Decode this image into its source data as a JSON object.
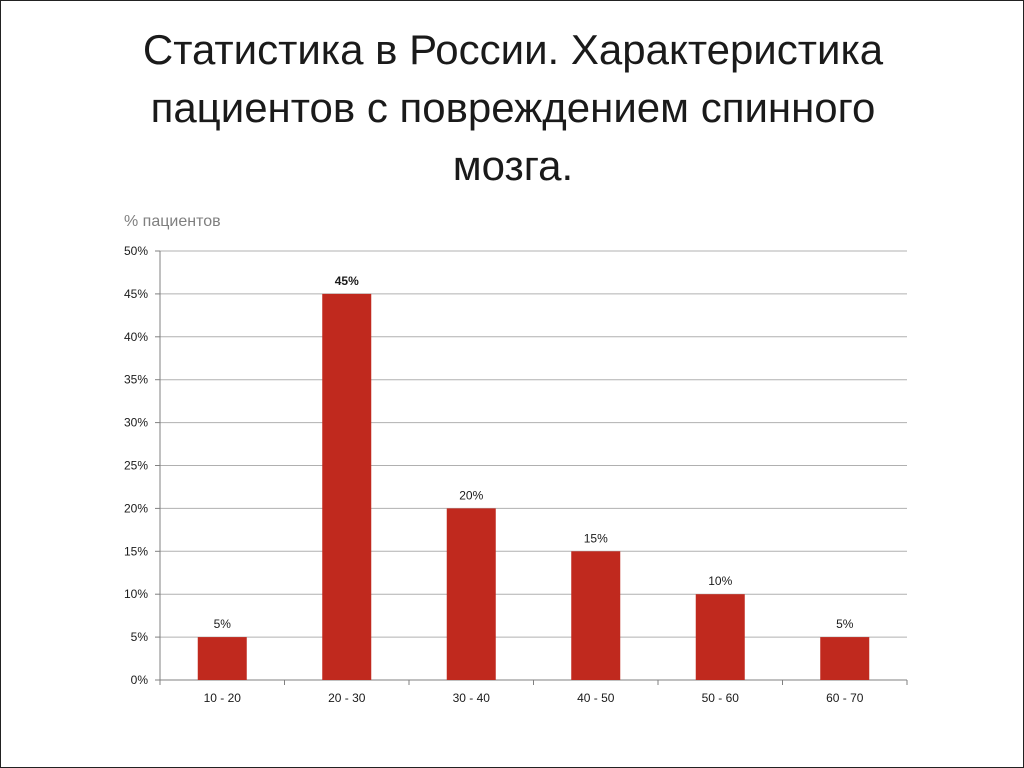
{
  "title_lines": [
    "Статистика в России. Характеристика",
    "пациентов с повреждением спинного",
    "мозга."
  ],
  "colors": {
    "bar": "#C0291E",
    "grid": "#b0b0b0",
    "axis": "#808080",
    "text": "#1a1a1a"
  },
  "chart_data": {
    "type": "bar",
    "ylabel": "% пациентов",
    "xlabel": "",
    "categories": [
      "10 - 20",
      "20 - 30",
      "30 - 40",
      "40 - 50",
      "50 - 60",
      "60 - 70"
    ],
    "values": [
      5,
      45,
      20,
      15,
      10,
      5
    ],
    "data_labels": [
      "5%",
      "45%",
      "20%",
      "15%",
      "10%",
      "5%"
    ],
    "data_label_bold": [
      false,
      true,
      false,
      false,
      false,
      false
    ],
    "ylim": [
      0,
      50
    ],
    "yticks": [
      0,
      5,
      10,
      15,
      20,
      25,
      30,
      35,
      40,
      45,
      50
    ],
    "ytick_labels": [
      "0%",
      "5%",
      "10%",
      "15%",
      "20%",
      "25%",
      "30%",
      "35%",
      "40%",
      "45%",
      "50%"
    ],
    "grid": true,
    "legend": "none"
  }
}
